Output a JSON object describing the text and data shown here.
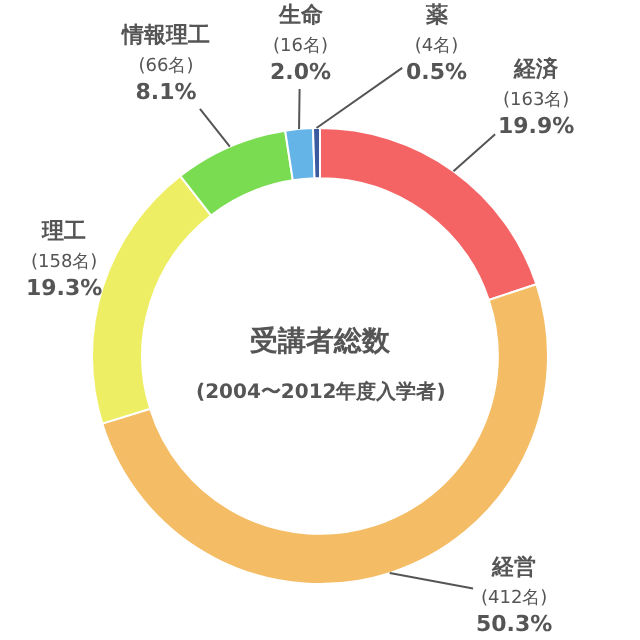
{
  "chart_data": {
    "type": "donut",
    "title": "受講者総数",
    "subtitle": "(2004〜2012年度入学者)",
    "categories": [
      "経済",
      "経営",
      "理工",
      "情報理工",
      "生命",
      "薬"
    ],
    "values": [
      163,
      412,
      158,
      66,
      16,
      4
    ],
    "value_labels": [
      "(163名)\n19.9%",
      "(412名)\n50.3%",
      "(158名)\n19.3%",
      "(66名)\n8.1%",
      "(16名)\n2.0%",
      "(4名)\n0.5%"
    ],
    "colors": [
      "#f46464",
      "#f4bc64",
      "#eeee64",
      "#7adc50",
      "#64b4e8",
      "#3c5aa0"
    ],
    "legend": false
  }
}
